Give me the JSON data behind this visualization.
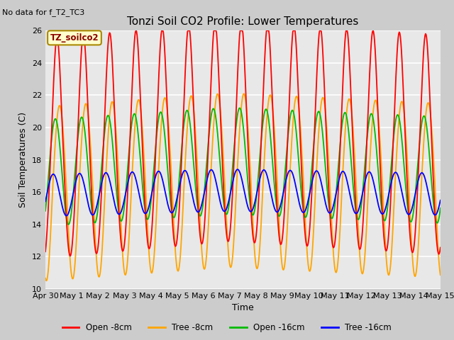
{
  "title": "Tonzi Soil CO2 Profile: Lower Temperatures",
  "subtitle": "No data for f_T2_TC3",
  "tag_label": "TZ_soilco2",
  "xlabel": "Time",
  "ylabel": "Soil Temperatures (C)",
  "ylim": [
    10,
    26
  ],
  "yticks": [
    10,
    12,
    14,
    16,
    18,
    20,
    22,
    24,
    26
  ],
  "bg_color": "#e8e8e8",
  "legend": [
    "Open -8cm",
    "Tree -8cm",
    "Open -16cm",
    "Tree -16cm"
  ],
  "legend_colors": [
    "#ff0000",
    "#ffa500",
    "#00bb00",
    "#0000ff"
  ],
  "xtick_labels": [
    "Apr 30",
    "May 1",
    "May 2",
    "May 3",
    "May 4",
    "May 5",
    "May 6",
    "May 7",
    "May 8",
    "May 9",
    "May 10",
    "May 11",
    "May 12",
    "May 13",
    "May 14",
    "May 15"
  ],
  "n_points": 721,
  "days": 15
}
